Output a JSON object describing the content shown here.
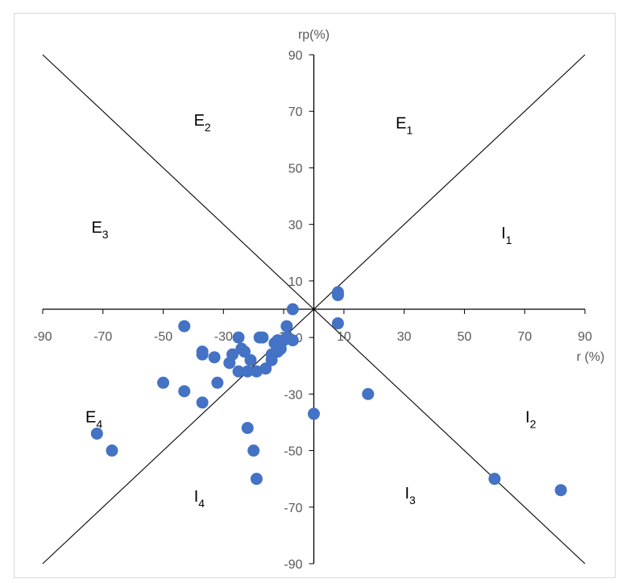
{
  "chart_data": {
    "type": "scatter",
    "xlabel": "r (%)",
    "ylabel": "rp(%)",
    "xlim": [
      -90,
      90
    ],
    "ylim": [
      -90,
      90
    ],
    "xticks": [
      -90,
      -70,
      -50,
      -30,
      -10,
      10,
      30,
      50,
      70,
      90
    ],
    "yticks": [
      -90,
      -70,
      -50,
      -30,
      -10,
      10,
      30,
      50,
      70,
      90
    ],
    "x_tick_labels": [
      "-90",
      "-70",
      "-50",
      "-30",
      "-10",
      "10",
      "30",
      "50",
      "70",
      "90"
    ],
    "y_tick_labels": [
      "-90",
      "-70",
      "-50",
      "-30",
      "-10",
      "10",
      "30",
      "50",
      "70",
      "90"
    ],
    "reference_lines": [
      {
        "name": "diagonal",
        "from": [
          -90,
          -90
        ],
        "to": [
          90,
          90
        ]
      },
      {
        "name": "anti-diagonal",
        "from": [
          -90,
          90
        ],
        "to": [
          90,
          -90
        ]
      }
    ],
    "regions": [
      {
        "letter": "E",
        "sub": "1",
        "x": 30,
        "y": 64
      },
      {
        "letter": "E",
        "sub": "2",
        "x": -37,
        "y": 65
      },
      {
        "letter": "E",
        "sub": "3",
        "x": -71,
        "y": 27
      },
      {
        "letter": "E",
        "sub": "4",
        "x": -73,
        "y": -40
      },
      {
        "letter": "I",
        "sub": "1",
        "x": 64,
        "y": 25
      },
      {
        "letter": "I",
        "sub": "2",
        "x": 72,
        "y": -40
      },
      {
        "letter": "I",
        "sub": "3",
        "x": 32,
        "y": -67
      },
      {
        "letter": "I",
        "sub": "4",
        "x": -38,
        "y": -68
      }
    ],
    "series": [
      {
        "color": "#4472c4",
        "points": [
          [
            -7,
            0
          ],
          [
            8,
            6
          ],
          [
            8,
            5
          ],
          [
            8,
            -5
          ],
          [
            -9,
            -6
          ],
          [
            -7,
            -11
          ],
          [
            -9,
            -10
          ],
          [
            -10,
            -11
          ],
          [
            -12,
            -11
          ],
          [
            -12,
            -15
          ],
          [
            -17,
            -10
          ],
          [
            -18,
            -10
          ],
          [
            -11,
            -14
          ],
          [
            -13,
            -12
          ],
          [
            -14,
            -16
          ],
          [
            -14,
            -18
          ],
          [
            -16,
            -21
          ],
          [
            -19,
            -22
          ],
          [
            -21,
            -18
          ],
          [
            -23,
            -15
          ],
          [
            -24,
            -14
          ],
          [
            -25,
            -10
          ],
          [
            -25,
            -22
          ],
          [
            -22,
            -22
          ],
          [
            -27,
            -16
          ],
          [
            -28,
            -19
          ],
          [
            -33,
            -17
          ],
          [
            -37,
            -15
          ],
          [
            -37,
            -16
          ],
          [
            -43,
            -6
          ],
          [
            -32,
            -26
          ],
          [
            -37,
            -33
          ],
          [
            -43,
            -29
          ],
          [
            -50,
            -26
          ],
          [
            -22,
            -42
          ],
          [
            -20,
            -50
          ],
          [
            -19,
            -60
          ],
          [
            -67,
            -50
          ],
          [
            -72,
            -44
          ],
          [
            0,
            -37
          ],
          [
            18,
            -30
          ],
          [
            60,
            -60
          ],
          [
            82,
            -64
          ]
        ]
      }
    ]
  }
}
